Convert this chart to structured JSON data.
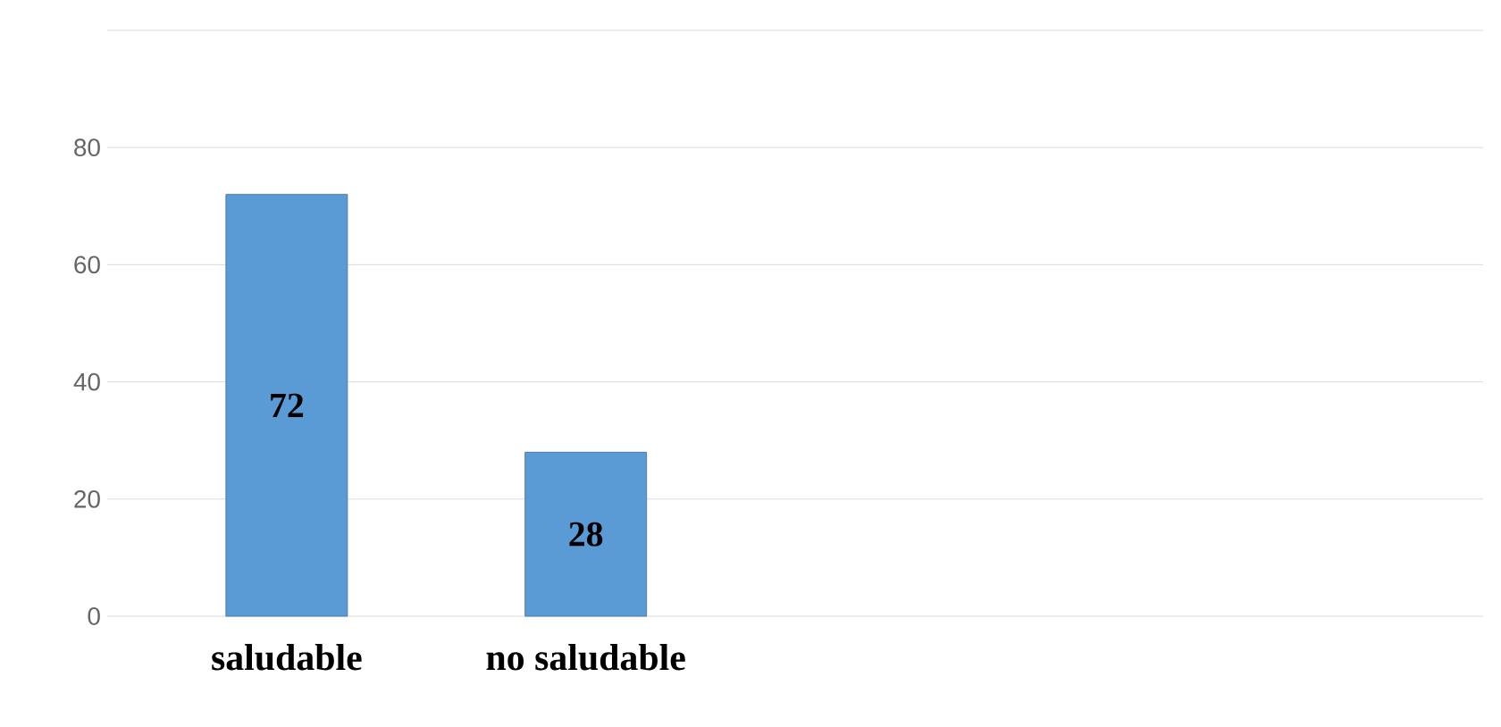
{
  "chart_data": {
    "type": "bar",
    "categories": [
      "saludable",
      "no saludable"
    ],
    "values": [
      72,
      28
    ],
    "color": "#5b9bd5",
    "ylim": [
      0,
      100
    ],
    "yticks": [
      0,
      20,
      40,
      60,
      80,
      {
        "value": 100,
        "label": null
      }
    ],
    "grid": "y",
    "data_labels": true
  }
}
